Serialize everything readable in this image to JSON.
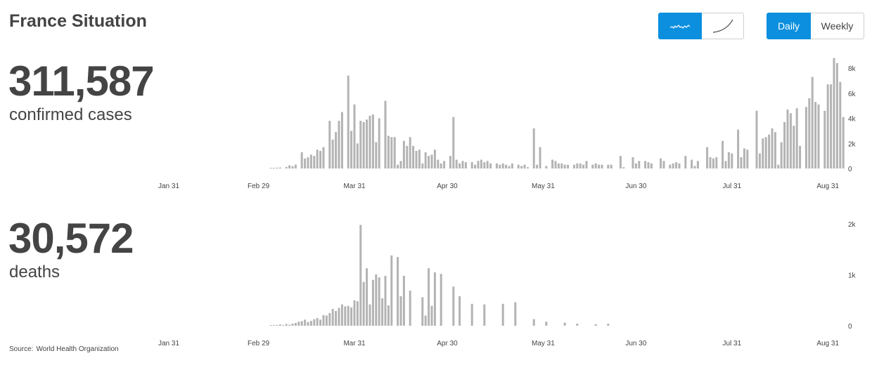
{
  "header": {
    "title": "France Situation"
  },
  "controls": {
    "scale_buttons": [
      {
        "name": "linear",
        "icon": "linear-trend-icon",
        "active": true
      },
      {
        "name": "cumulative",
        "icon": "cumulative-curve-icon",
        "active": false
      }
    ],
    "period_buttons": [
      {
        "label": "Daily",
        "active": true
      },
      {
        "label": "Weekly",
        "active": false
      }
    ],
    "accent_color": "#0b8fde"
  },
  "cases": {
    "value": "311,587",
    "label": "confirmed cases"
  },
  "deaths": {
    "value": "30,572",
    "label": "deaths"
  },
  "source": {
    "label": "Source:",
    "name": "World Health Organization"
  },
  "chart_data": [
    {
      "type": "bar",
      "name": "confirmed-cases",
      "bar_color": "#b3b3b3",
      "x_start": "2020-03-04",
      "x_tick_labels": [
        "Jan 31",
        "Feb 29",
        "Mar 31",
        "Apr 30",
        "May 31",
        "Jun 30",
        "Jul 31",
        "Aug 31"
      ],
      "y_tick_labels": [
        "8k",
        "6k",
        "4k",
        "2k",
        "0"
      ],
      "ylim": [
        0,
        8000
      ],
      "values": [
        20,
        30,
        60,
        80,
        0,
        120,
        250,
        180,
        300,
        0,
        1300,
        800,
        900,
        1100,
        1000,
        1500,
        1400,
        1700,
        0,
        3800,
        2300,
        2900,
        3800,
        4500,
        0,
        7400,
        3000,
        5100,
        2000,
        3800,
        3700,
        3900,
        4200,
        4300,
        2100,
        4000,
        0,
        5400,
        2600,
        2500,
        2500,
        300,
        600,
        2200,
        1800,
        2500,
        1800,
        1400,
        1500,
        400,
        1300,
        1000,
        1100,
        1500,
        700,
        400,
        600,
        0,
        1000,
        4100,
        700,
        400,
        600,
        500,
        0,
        500,
        300,
        600,
        700,
        500,
        600,
        400,
        0,
        400,
        300,
        400,
        300,
        200,
        400,
        0,
        300,
        200,
        300,
        100,
        0,
        3200,
        300,
        1700,
        0,
        200,
        0,
        700,
        600,
        400,
        400,
        300,
        300,
        0,
        300,
        400,
        400,
        300,
        600,
        0,
        300,
        400,
        300,
        300,
        0,
        300,
        300,
        0,
        0,
        1000,
        100,
        0,
        0,
        900,
        400,
        600,
        0,
        600,
        500,
        400,
        0,
        0,
        800,
        600,
        0,
        300,
        400,
        500,
        400,
        0,
        1000,
        0,
        700,
        200,
        600,
        0,
        0,
        1700,
        900,
        800,
        900,
        0,
        2200,
        600,
        1300,
        1200,
        0,
        3100,
        900,
        1600,
        1500,
        0,
        0,
        4600,
        1200,
        2400,
        2500,
        2700,
        3200,
        2900,
        300,
        2100,
        3700,
        4700,
        4400,
        3400,
        4800,
        1800,
        0,
        4900,
        5600,
        7300,
        5300,
        5100,
        0,
        4600,
        6700,
        6700,
        8800,
        8400,
        6900,
        4100
      ]
    },
    {
      "type": "bar",
      "name": "deaths",
      "bar_color": "#b3b3b3",
      "x_start": "2020-03-04",
      "x_tick_labels": [
        "Jan 31",
        "Feb 29",
        "Mar 31",
        "Apr 30",
        "May 31",
        "Jun 30",
        "Jul 31",
        "Aug 31"
      ],
      "y_tick_labels": [
        "2k",
        "1k",
        "0"
      ],
      "ylim": [
        0,
        2000
      ],
      "values": [
        5,
        8,
        15,
        25,
        10,
        35,
        20,
        40,
        55,
        80,
        90,
        120,
        75,
        95,
        130,
        150,
        120,
        210,
        200,
        250,
        330,
        290,
        350,
        420,
        380,
        390,
        360,
        500,
        480,
        1980,
        860,
        1130,
        420,
        900,
        1010,
        950,
        540,
        980,
        400,
        1380,
        0,
        1350,
        580,
        980,
        0,
        690,
        0,
        0,
        0,
        560,
        200,
        1130,
        390,
        1050,
        0,
        1020,
        0,
        0,
        0,
        770,
        0,
        580,
        0,
        0,
        0,
        430,
        0,
        0,
        0,
        420,
        0,
        0,
        0,
        0,
        0,
        430,
        0,
        0,
        0,
        460,
        0,
        0,
        0,
        0,
        0,
        130,
        0,
        0,
        0,
        80,
        0,
        0,
        0,
        0,
        0,
        60,
        0,
        0,
        0,
        40,
        0,
        0,
        0,
        0,
        0,
        30,
        0,
        0,
        0,
        40,
        0,
        0,
        0,
        0,
        0,
        0,
        0,
        0,
        0,
        0,
        0,
        0,
        0,
        0,
        0,
        0,
        0,
        0,
        0,
        0,
        0,
        0,
        0,
        0,
        0,
        0,
        0,
        0,
        0,
        0,
        0,
        0,
        0,
        0,
        0,
        0,
        0,
        0,
        0,
        0,
        0,
        0,
        0,
        0,
        0,
        0,
        0,
        0,
        0,
        0,
        0,
        0,
        0,
        0,
        0,
        0,
        0,
        0,
        0,
        0,
        0,
        0,
        0,
        0,
        0,
        0,
        0,
        0,
        0,
        0,
        0,
        0,
        0,
        0,
        0,
        0
      ]
    }
  ]
}
